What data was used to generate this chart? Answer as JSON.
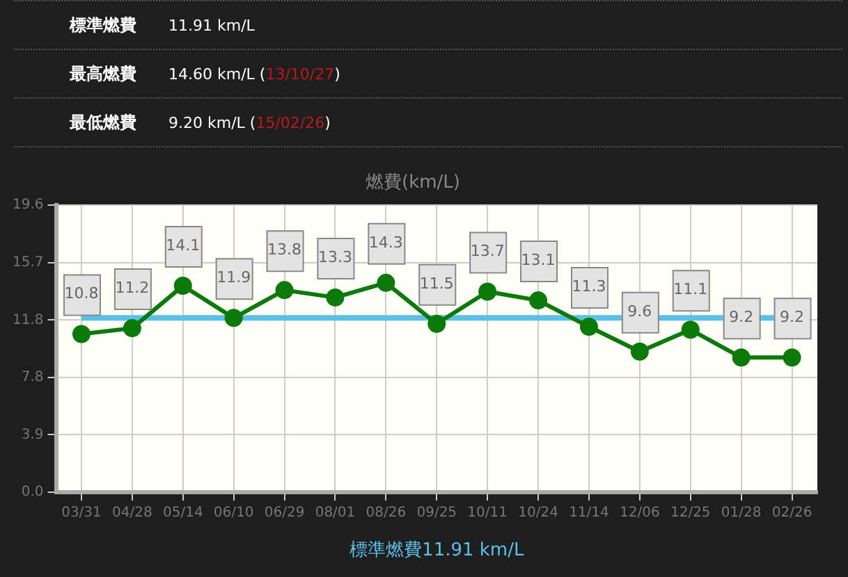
{
  "chart_data": {
    "type": "line",
    "title": "燃費(km/L)",
    "categories": [
      "03/31",
      "04/28",
      "05/14",
      "06/10",
      "06/29",
      "08/01",
      "08/26",
      "09/25",
      "10/11",
      "10/24",
      "11/14",
      "12/06",
      "12/25",
      "01/28",
      "02/26"
    ],
    "series": [
      {
        "color": "#0b7a0b",
        "values": [
          10.8,
          11.2,
          14.1,
          11.9,
          13.8,
          13.3,
          14.3,
          11.5,
          13.7,
          13.1,
          11.3,
          9.6,
          11.1,
          9.2,
          9.2
        ]
      }
    ],
    "ylim": [
      0,
      19.6
    ],
    "yticks": [
      {
        "value": 0,
        "label": "0.0"
      },
      {
        "value": 3.92,
        "label": "3.9"
      },
      {
        "value": 7.84,
        "label": "7.8"
      },
      {
        "value": 11.76,
        "label": "11.8"
      },
      {
        "value": 15.68,
        "label": "15.7"
      },
      {
        "value": 19.6,
        "label": "19.6"
      }
    ],
    "ref_lines": [
      {
        "axis": "y",
        "value": 11.91,
        "label": "標準燃費11.91 km/L",
        "color": "#5bc0e8"
      }
    ],
    "annotations": [
      "標準燃費",
      "11.91 km/L",
      "最高燃費",
      "14.60 km/L (13/10/27)",
      "最低燃費",
      "9.20 km/L (15/02/26)"
    ],
    "data_labels": true,
    "grid": true,
    "marker": "circle",
    "line_style": "solid"
  }
}
